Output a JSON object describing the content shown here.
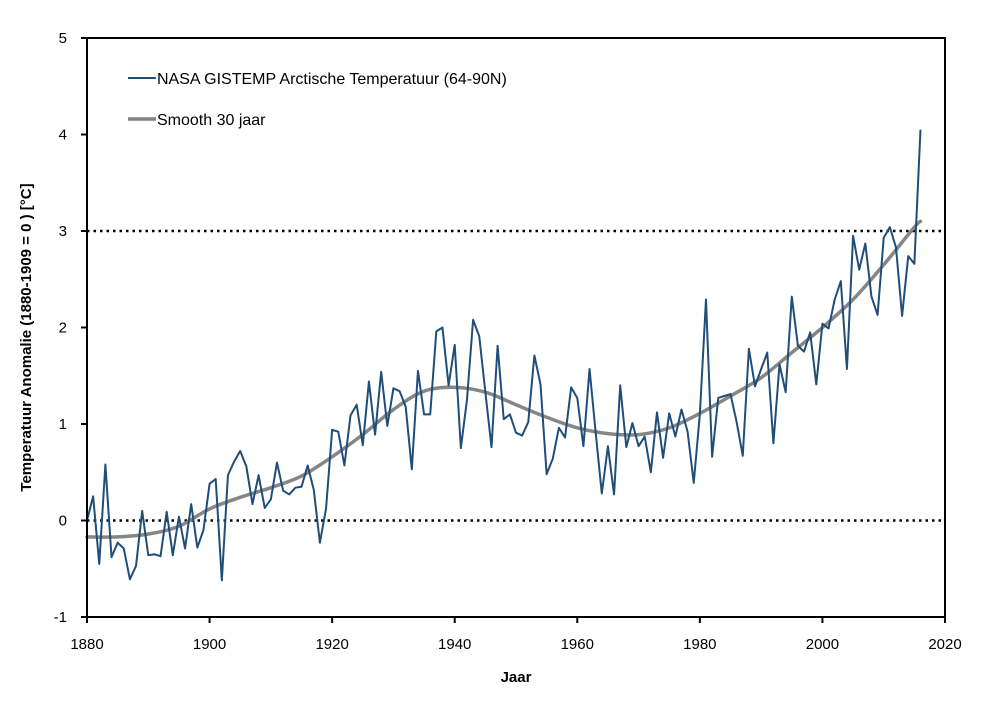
{
  "chart_data": {
    "type": "line",
    "title": "",
    "xlabel": "Jaar",
    "ylabel": "Temperatuur  Anomalie  (1880-1909 = 0 ) [°C]",
    "xlim": [
      1880,
      2020
    ],
    "ylim": [
      -1,
      5
    ],
    "x_ticks": [
      1880,
      1900,
      1920,
      1940,
      1960,
      1980,
      2000,
      2020
    ],
    "y_ticks": [
      -1,
      0,
      1,
      2,
      3,
      4,
      5
    ],
    "x_tick_labels": [
      "1880",
      "1900",
      "1920",
      "1940",
      "1960",
      "1980",
      "2000",
      "2020"
    ],
    "y_tick_labels": [
      "-1",
      "0",
      "1",
      "2",
      "3",
      "4",
      "5"
    ],
    "grid": false,
    "reference_lines": [
      {
        "y": 0,
        "style": "dotted",
        "color": "#000000"
      },
      {
        "y": 3,
        "style": "dotted",
        "color": "#000000"
      }
    ],
    "legend": {
      "position": "top-left"
    },
    "series": [
      {
        "name": "NASA GISTEMP Arctische Temperatuur (64-90N)",
        "color": "#1F4E79",
        "x_start": 1880,
        "x_step": 1,
        "values": [
          0.0,
          0.25,
          -0.45,
          0.58,
          -0.38,
          -0.23,
          -0.29,
          -0.61,
          -0.47,
          0.1,
          -0.36,
          -0.35,
          -0.37,
          0.09,
          -0.36,
          0.04,
          -0.29,
          0.17,
          -0.28,
          -0.1,
          0.38,
          0.43,
          -0.62,
          0.47,
          0.61,
          0.72,
          0.56,
          0.17,
          0.47,
          0.13,
          0.22,
          0.6,
          0.31,
          0.27,
          0.34,
          0.35,
          0.57,
          0.32,
          -0.23,
          0.12,
          0.94,
          0.92,
          0.57,
          1.09,
          1.2,
          0.78,
          1.44,
          0.89,
          1.54,
          0.98,
          1.37,
          1.34,
          1.18,
          0.53,
          1.55,
          1.1,
          1.1,
          1.96,
          2.0,
          1.4,
          1.82,
          0.75,
          1.25,
          2.08,
          1.91,
          1.33,
          0.76,
          1.81,
          1.05,
          1.1,
          0.91,
          0.88,
          1.02,
          1.71,
          1.41,
          0.48,
          0.64,
          0.96,
          0.86,
          1.38,
          1.27,
          0.77,
          1.57,
          0.91,
          0.28,
          0.77,
          0.27,
          1.4,
          0.76,
          1.01,
          0.77,
          0.87,
          0.5,
          1.12,
          0.65,
          1.11,
          0.87,
          1.15,
          0.92,
          0.39,
          1.1,
          2.29,
          0.66,
          1.27,
          1.29,
          1.31,
          1.02,
          0.67,
          1.78,
          1.39,
          1.57,
          1.74,
          0.8,
          1.62,
          1.33,
          2.32,
          1.81,
          1.75,
          1.95,
          1.41,
          2.04,
          1.99,
          2.29,
          2.48,
          1.57,
          2.95,
          2.6,
          2.87,
          2.32,
          2.13,
          2.93,
          3.04,
          2.83,
          2.12,
          2.74,
          2.66,
          4.05
        ]
      },
      {
        "name": "Smooth 30 jaar",
        "color": "#808080",
        "x": [
          1880,
          1885,
          1890,
          1895,
          1900,
          1905,
          1910,
          1915,
          1920,
          1925,
          1930,
          1935,
          1940,
          1945,
          1950,
          1955,
          1960,
          1965,
          1970,
          1975,
          1980,
          1985,
          1990,
          1995,
          2000,
          2005,
          2010,
          2015,
          2016
        ],
        "values": [
          -0.17,
          -0.17,
          -0.14,
          -0.06,
          0.12,
          0.24,
          0.34,
          0.46,
          0.66,
          0.89,
          1.15,
          1.34,
          1.38,
          1.33,
          1.2,
          1.07,
          0.96,
          0.9,
          0.89,
          0.96,
          1.11,
          1.29,
          1.48,
          1.74,
          2.0,
          2.29,
          2.65,
          3.04,
          3.1
        ]
      }
    ]
  }
}
